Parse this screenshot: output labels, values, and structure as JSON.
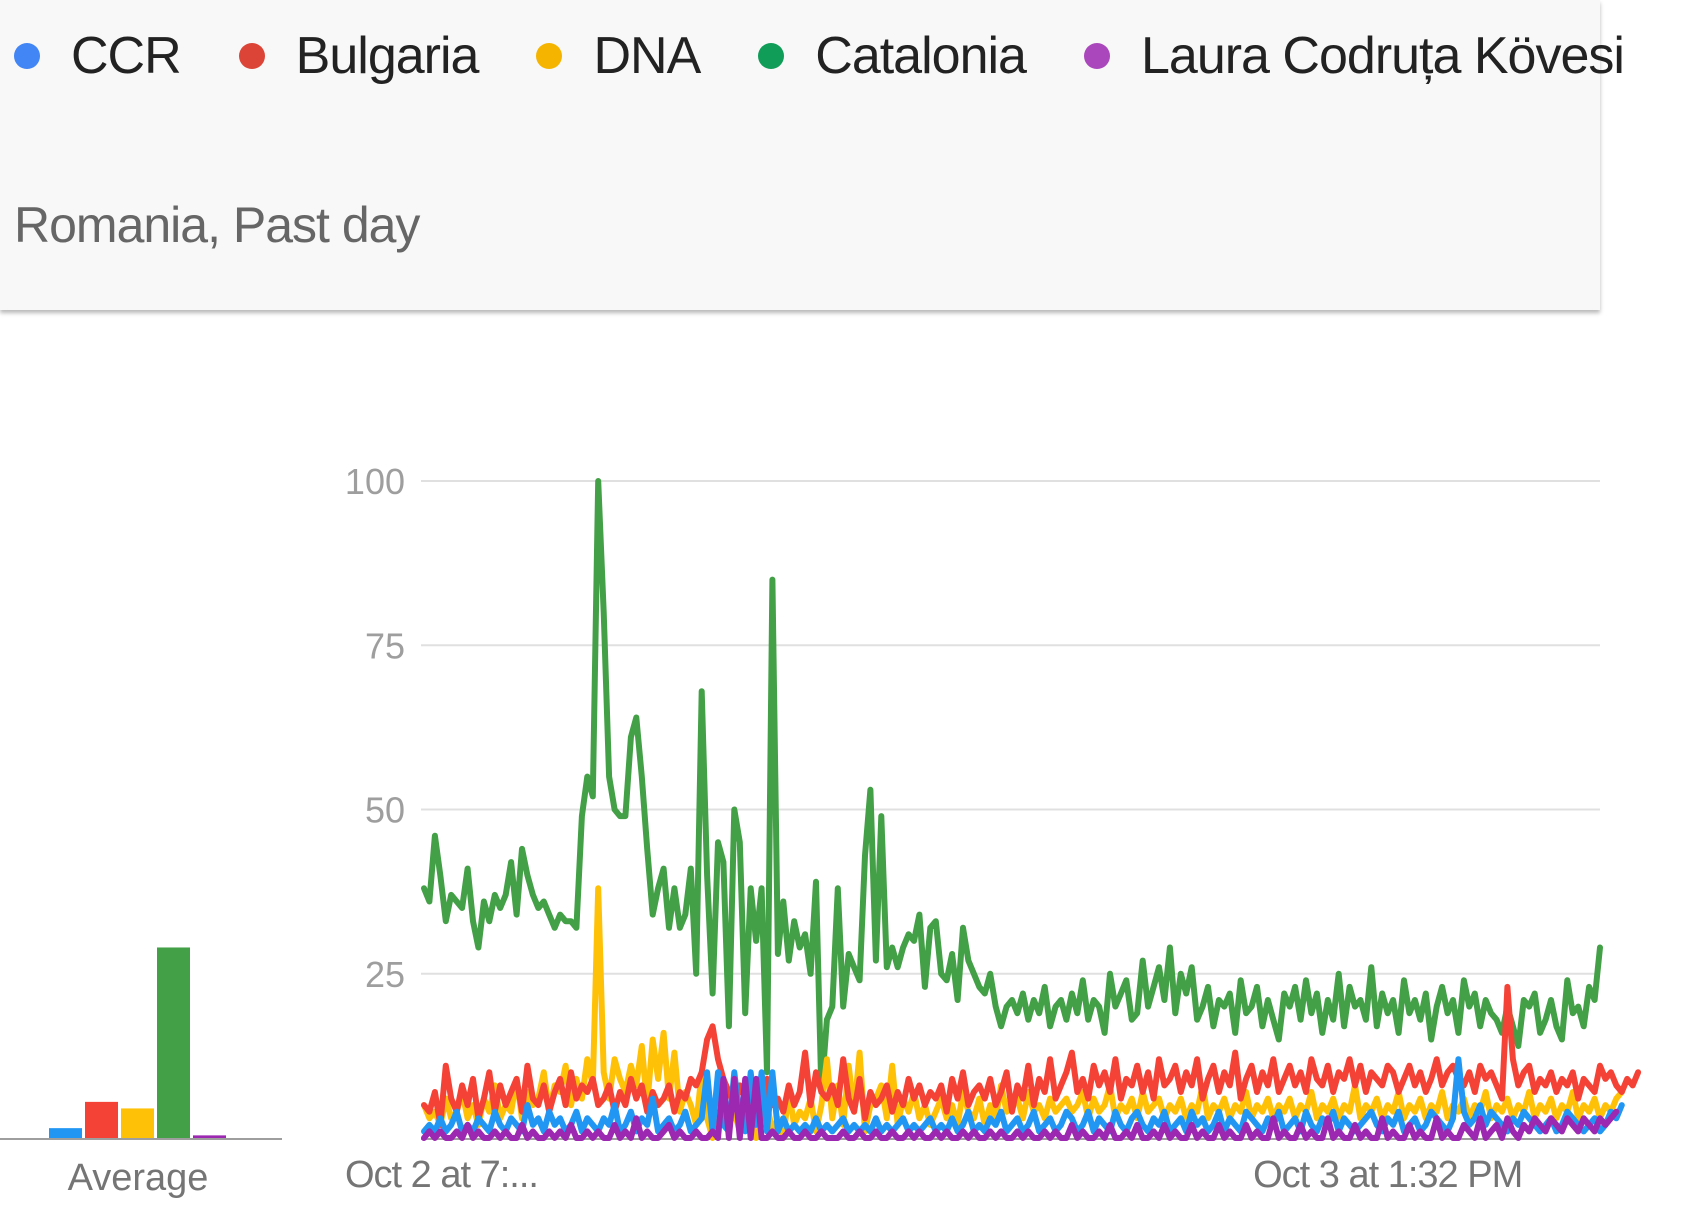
{
  "legend": {
    "items": [
      {
        "label": "CCR",
        "color": "#4285f4"
      },
      {
        "label": "Bulgaria",
        "color": "#db4437"
      },
      {
        "label": "DNA",
        "color": "#f4b400"
      },
      {
        "label": "Catalonia",
        "color": "#0f9d58"
      },
      {
        "label": "Laura Codruța Kövesi",
        "color": "#ab47bc"
      }
    ]
  },
  "subtitle": "Romania, Past day",
  "chart_data": [
    {
      "type": "bar",
      "categories": [
        "CCR",
        "Bulgaria",
        "DNA",
        "Catalonia",
        "Laura Codruța Kövesi"
      ],
      "values": [
        1.5,
        5.5,
        4.5,
        29,
        0.4
      ],
      "colors": [
        "#2196f3",
        "#f44336",
        "#ffc107",
        "#43a047",
        "#9c27b0"
      ],
      "xlabel": "Average",
      "ylim": [
        0,
        100
      ]
    },
    {
      "type": "line",
      "ylim": [
        0,
        100
      ],
      "yticks": [
        25,
        50,
        75,
        100
      ],
      "xticks": [
        {
          "index": 0,
          "label": "Oct 2 at 7:..."
        },
        {
          "index": 177,
          "label": "Oct 3 at 1:32 PM"
        }
      ],
      "grid": true,
      "series": [
        {
          "name": "Catalonia",
          "color": "#43a047",
          "values": [
            38,
            36,
            46,
            40,
            33,
            37,
            36,
            35,
            41,
            33,
            29,
            36,
            33,
            37,
            35,
            37,
            42,
            34,
            44,
            40,
            37,
            35,
            36,
            34,
            32,
            34,
            33,
            33,
            32,
            49,
            55,
            52,
            100,
            80,
            55,
            50,
            49,
            49,
            61,
            64,
            55,
            44,
            34,
            38,
            41,
            32,
            38,
            32,
            34,
            41,
            25,
            68,
            40,
            22,
            45,
            42,
            17,
            50,
            45,
            19,
            38,
            30,
            38,
            10,
            85,
            28,
            36,
            27,
            33,
            29,
            31,
            25,
            39,
            7,
            18,
            20,
            38,
            20,
            28,
            26,
            24,
            43,
            53,
            27,
            49,
            26,
            29,
            26,
            29,
            31,
            30,
            34,
            23,
            32,
            33,
            25,
            24,
            28,
            21,
            32,
            27,
            25,
            23,
            22,
            25,
            20,
            17,
            20,
            21,
            19,
            22,
            18,
            21,
            19,
            23,
            17,
            20,
            21,
            18,
            22,
            19,
            24,
            18,
            21,
            20,
            16,
            25,
            20,
            22,
            24,
            18,
            19,
            27,
            20,
            23,
            26,
            21,
            29,
            19,
            25,
            22,
            26,
            18,
            20,
            23,
            17,
            21,
            20,
            22,
            16,
            24,
            19,
            20,
            23,
            17,
            21,
            18,
            15,
            22,
            20,
            23,
            18,
            24,
            19,
            22,
            16,
            21,
            18,
            25,
            17,
            23,
            20,
            21,
            18,
            26,
            17,
            22,
            19,
            21,
            16,
            24,
            19,
            21,
            18,
            22,
            15,
            20,
            23,
            19,
            21,
            16,
            24,
            20,
            22,
            17,
            21,
            19,
            18,
            16,
            20,
            17,
            14,
            21,
            20,
            22,
            16,
            18,
            21,
            17,
            15,
            24,
            19,
            20,
            17,
            23,
            21,
            29
          ]
        },
        {
          "name": "DNA",
          "color": "#ffc107",
          "values": [
            5,
            3,
            4,
            2,
            6,
            3,
            4,
            7,
            3,
            5,
            2,
            6,
            4,
            8,
            3,
            5,
            4,
            9,
            3,
            7,
            5,
            6,
            10,
            4,
            8,
            7,
            11,
            5,
            9,
            6,
            12,
            8,
            38,
            10,
            6,
            12,
            9,
            7,
            11,
            8,
            14,
            5,
            15,
            9,
            16,
            6,
            13,
            4,
            7,
            5,
            2,
            10,
            3,
            0,
            3,
            5,
            2,
            4,
            1,
            2,
            3,
            0,
            2,
            5,
            1,
            3,
            0,
            7,
            2,
            4,
            3,
            6,
            1,
            5,
            12,
            3,
            8,
            2,
            11,
            4,
            13,
            1,
            5,
            6,
            8,
            3,
            11,
            2,
            6,
            4,
            7,
            3,
            5,
            2,
            4,
            6,
            3,
            5,
            2,
            7,
            4,
            3,
            6,
            2,
            5,
            3,
            8,
            4,
            5,
            6,
            3,
            7,
            4,
            5,
            3,
            6,
            4,
            5,
            6,
            4,
            5,
            7,
            3,
            6,
            4,
            5,
            8,
            3,
            5,
            4,
            6,
            3,
            7,
            4,
            5,
            6,
            3,
            5,
            4,
            6,
            3,
            5,
            4,
            8,
            3,
            5,
            4,
            6,
            3,
            5,
            4,
            7,
            3,
            5,
            4,
            6,
            3,
            5,
            4,
            6,
            3,
            5,
            4,
            7,
            3,
            5,
            4,
            6,
            3,
            5,
            4,
            8,
            3,
            5,
            4,
            6,
            3,
            5,
            4,
            7,
            3,
            5,
            4,
            6,
            3,
            5,
            4,
            7,
            3,
            5,
            4,
            6,
            3,
            5,
            4,
            7,
            3,
            5,
            4,
            6,
            3,
            5,
            4,
            7,
            3,
            5,
            4,
            6,
            3,
            5,
            4,
            7,
            3,
            5,
            4,
            6,
            3,
            5,
            4,
            6,
            7
          ]
        },
        {
          "name": "Bulgaria",
          "color": "#f44336",
          "values": [
            5,
            4,
            7,
            2,
            11,
            6,
            4,
            8,
            5,
            9,
            3,
            6,
            10,
            4,
            8,
            5,
            7,
            9,
            4,
            11,
            6,
            5,
            8,
            4,
            7,
            9,
            5,
            10,
            6,
            8,
            7,
            9,
            5,
            6,
            8,
            4,
            7,
            5,
            9,
            6,
            8,
            4,
            7,
            5,
            6,
            8,
            4,
            7,
            6,
            9,
            8,
            10,
            15,
            17,
            12,
            9,
            7,
            5,
            8,
            6,
            4,
            7,
            3,
            9,
            5,
            6,
            4,
            8,
            5,
            7,
            13,
            5,
            10,
            7,
            6,
            8,
            5,
            12,
            6,
            4,
            9,
            3,
            7,
            5,
            6,
            8,
            4,
            7,
            5,
            9,
            6,
            8,
            5,
            7,
            6,
            8,
            4,
            9,
            6,
            10,
            5,
            7,
            8,
            6,
            9,
            5,
            7,
            10,
            4,
            8,
            6,
            11,
            5,
            9,
            7,
            12,
            6,
            8,
            10,
            13,
            7,
            9,
            6,
            11,
            8,
            10,
            7,
            12,
            6,
            9,
            8,
            11,
            7,
            10,
            6,
            12,
            8,
            9,
            11,
            7,
            10,
            8,
            12,
            6,
            9,
            11,
            7,
            10,
            8,
            13,
            6,
            9,
            11,
            7,
            10,
            8,
            12,
            7,
            9,
            11,
            8,
            10,
            7,
            12,
            9,
            8,
            11,
            7,
            10,
            9,
            12,
            8,
            11,
            7,
            10,
            9,
            8,
            11,
            10,
            7,
            9,
            11,
            8,
            10,
            7,
            9,
            12,
            8,
            10,
            11,
            9,
            8,
            10,
            7,
            11,
            9,
            10,
            8,
            6,
            23,
            12,
            8,
            10,
            11,
            7,
            9,
            8,
            10,
            7,
            9,
            8,
            10,
            6,
            9,
            8,
            7,
            11,
            9,
            10,
            8,
            7,
            9,
            8,
            10
          ]
        },
        {
          "name": "CCR",
          "color": "#2196f3",
          "values": [
            1,
            2,
            1,
            3,
            1,
            2,
            4,
            1,
            2,
            1,
            3,
            2,
            1,
            4,
            2,
            1,
            3,
            2,
            1,
            5,
            2,
            3,
            1,
            4,
            2,
            3,
            1,
            2,
            4,
            1,
            3,
            2,
            1,
            3,
            2,
            5,
            1,
            2,
            4,
            1,
            3,
            2,
            6,
            1,
            2,
            3,
            1,
            2,
            4,
            1,
            2,
            3,
            10,
            1,
            10,
            2,
            1,
            10,
            3,
            1,
            10,
            2,
            10,
            1,
            10,
            1,
            3,
            1,
            2,
            1,
            2,
            1,
            3,
            1,
            2,
            1,
            2,
            3,
            1,
            2,
            1,
            2,
            1,
            3,
            1,
            2,
            1,
            2,
            3,
            1,
            2,
            1,
            2,
            3,
            1,
            2,
            1,
            3,
            1,
            2,
            4,
            1,
            2,
            1,
            3,
            2,
            4,
            1,
            2,
            3,
            1,
            2,
            4,
            1,
            2,
            3,
            1,
            2,
            4,
            3,
            1,
            2,
            4,
            1,
            3,
            2,
            1,
            4,
            2,
            1,
            3,
            4,
            2,
            1,
            3,
            2,
            4,
            1,
            2,
            3,
            1,
            4,
            2,
            3,
            1,
            2,
            4,
            1,
            3,
            2,
            1,
            4,
            3,
            2,
            1,
            3,
            2,
            4,
            1,
            2,
            3,
            1,
            4,
            2,
            1,
            3,
            2,
            4,
            1,
            3,
            2,
            1,
            2,
            3,
            4,
            2,
            1,
            3,
            2,
            4,
            1,
            2,
            3,
            1,
            2,
            4,
            3,
            2,
            1,
            3,
            12,
            4,
            2,
            3,
            5,
            2,
            4,
            3,
            2,
            1,
            3,
            2,
            4,
            3,
            2,
            1,
            2,
            3,
            1,
            2,
            4,
            3,
            2,
            1,
            2,
            3,
            1,
            2,
            4,
            3,
            5
          ]
        },
        {
          "name": "Laura Codruța Kövesi",
          "color": "#9c27b0",
          "values": [
            0,
            1,
            0,
            1,
            0,
            0,
            1,
            0,
            2,
            0,
            1,
            0,
            0,
            1,
            0,
            1,
            0,
            0,
            2,
            0,
            1,
            0,
            0,
            1,
            0,
            1,
            0,
            2,
            0,
            0,
            1,
            0,
            1,
            0,
            0,
            2,
            0,
            1,
            0,
            3,
            0,
            1,
            0,
            0,
            1,
            2,
            0,
            1,
            0,
            0,
            1,
            0,
            0,
            1,
            0,
            9,
            0,
            9,
            0,
            9,
            0,
            9,
            0,
            0,
            1,
            0,
            0,
            1,
            0,
            0,
            1,
            0,
            0,
            1,
            0,
            0,
            0,
            1,
            0,
            0,
            1,
            0,
            0,
            1,
            0,
            0,
            1,
            0,
            0,
            1,
            0,
            1,
            0,
            0,
            1,
            0,
            1,
            0,
            0,
            1,
            0,
            1,
            0,
            0,
            1,
            0,
            1,
            0,
            0,
            1,
            0,
            1,
            0,
            0,
            1,
            0,
            1,
            0,
            0,
            2,
            0,
            1,
            0,
            0,
            1,
            0,
            2,
            0,
            0,
            1,
            0,
            2,
            0,
            0,
            1,
            0,
            2,
            0,
            1,
            0,
            0,
            2,
            0,
            1,
            0,
            0,
            2,
            0,
            1,
            0,
            0,
            2,
            0,
            1,
            0,
            0,
            3,
            0,
            1,
            0,
            0,
            2,
            0,
            1,
            0,
            0,
            3,
            0,
            1,
            0,
            0,
            2,
            0,
            1,
            0,
            0,
            3,
            0,
            1,
            0,
            0,
            2,
            0,
            1,
            0,
            0,
            3,
            0,
            1,
            0,
            0,
            2,
            1,
            0,
            3,
            0,
            1,
            2,
            0,
            3,
            1,
            0,
            2,
            1,
            3,
            2,
            1,
            3,
            2,
            1,
            3,
            2,
            1,
            3,
            2,
            1,
            3,
            2,
            3,
            4
          ]
        }
      ]
    }
  ]
}
